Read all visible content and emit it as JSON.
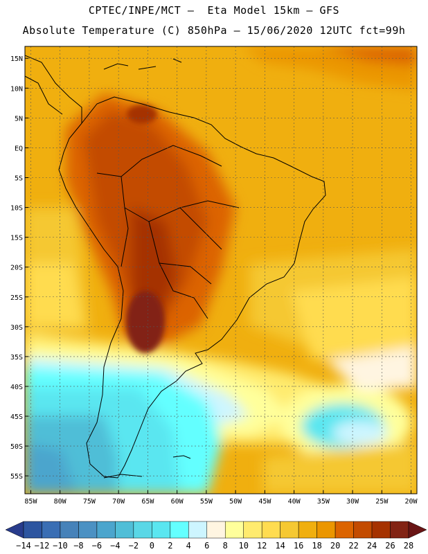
{
  "header": {
    "line1": "CPTEC/INPE/MCT –  Eta Model 15km – GFS",
    "line2": "Absolute Temperature (C) 850hPa – 15/06/2020 12UTC fct=99h"
  },
  "map": {
    "lon_range": [
      -86,
      -19
    ],
    "lat_range": [
      -58,
      17
    ],
    "lat_ticks": [
      "15N",
      "10N",
      "5N",
      "EQ",
      "5S",
      "10S",
      "15S",
      "20S",
      "25S",
      "30S",
      "35S",
      "40S",
      "45S",
      "50S",
      "55S"
    ],
    "lat_values": [
      15,
      10,
      5,
      0,
      -5,
      -10,
      -15,
      -20,
      -25,
      -30,
      -35,
      -40,
      -45,
      -50,
      -55
    ],
    "lon_ticks": [
      "85W",
      "80W",
      "75W",
      "70W",
      "65W",
      "60W",
      "55W",
      "50W",
      "45W",
      "40W",
      "35W",
      "30W",
      "25W",
      "20W"
    ],
    "lon_values": [
      -85,
      -80,
      -75,
      -70,
      -65,
      -60,
      -55,
      -50,
      -45,
      -40,
      -35,
      -30,
      -25,
      -20
    ],
    "grid": "dotted"
  },
  "colorbar": {
    "labels": [
      "-14",
      "-12",
      "-10",
      "-8",
      "-6",
      "-4",
      "-2",
      "0",
      "2",
      "4",
      "6",
      "8",
      "10",
      "12",
      "14",
      "16",
      "18",
      "20",
      "22",
      "24",
      "26",
      "28"
    ],
    "colors": [
      "#283c8c",
      "#2d55a0",
      "#3a6eb4",
      "#4682b9",
      "#4b91c3",
      "#4ba5cd",
      "#50bed7",
      "#5ad7e6",
      "#5ae6f0",
      "#64ffff",
      "#cdf5ff",
      "#fff5e1",
      "#ffff9b",
      "#ffeb6e",
      "#ffdc50",
      "#f5c832",
      "#f0af0f",
      "#eb9600",
      "#dc6400",
      "#c34b00",
      "#a53200",
      "#822314",
      "#691414"
    ]
  }
}
